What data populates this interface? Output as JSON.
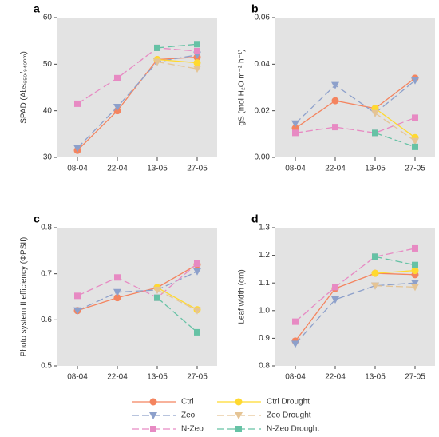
{
  "chart_data": [
    {
      "type": "line",
      "title": "a",
      "ylabel": "SPAD (Abs₆₅₀/₉₄₀ₙₘ)",
      "categories": [
        "08-04",
        "22-04",
        "13-05",
        "27-05"
      ],
      "ylim": [
        30,
        60
      ],
      "yticks": [
        30,
        40,
        50,
        60
      ],
      "grid": false,
      "series": [
        {
          "name": "Ctrl",
          "color": "#f4845f",
          "marker": "o",
          "linestyle": "solid",
          "values": [
            31.5,
            40,
            51,
            51.5
          ]
        },
        {
          "name": "Zeo",
          "color": "#8da0cb",
          "marker": "v",
          "linestyle": "dashed",
          "values": [
            32,
            40.8,
            50.5,
            52
          ]
        },
        {
          "name": "N-Zeo",
          "color": "#e78ac3",
          "marker": "s",
          "linestyle": "dashed",
          "values": [
            41.5,
            47,
            53.5,
            52.8
          ]
        },
        {
          "name": "Ctrl Drought",
          "color": "#ffd92f",
          "marker": "o",
          "linestyle": "solid",
          "values": [
            null,
            null,
            51,
            50.3
          ]
        },
        {
          "name": "Zeo Drought",
          "color": "#e5c494",
          "marker": "v",
          "linestyle": "dashed",
          "values": [
            null,
            null,
            50.5,
            49
          ]
        },
        {
          "name": "N-Zeo Drought",
          "color": "#66c2a5",
          "marker": "s",
          "linestyle": "dashed",
          "values": [
            null,
            null,
            53.5,
            54.3
          ]
        }
      ]
    },
    {
      "type": "line",
      "title": "b",
      "ylabel": "gS (mol H₂O m⁻² h⁻¹)",
      "categories": [
        "08-04",
        "22-04",
        "13-05",
        "27-05"
      ],
      "ylim": [
        0,
        0.06
      ],
      "yticks": [
        {
          "value": 0,
          "label": "0.00"
        },
        0.02,
        0.04,
        0.06
      ],
      "grid": false,
      "series": [
        {
          "name": "Ctrl",
          "color": "#f4845f",
          "marker": "o",
          "linestyle": "solid",
          "values": [
            0.0125,
            0.0243,
            0.021,
            0.034
          ]
        },
        {
          "name": "Zeo",
          "color": "#8da0cb",
          "marker": "v",
          "linestyle": "dashed",
          "values": [
            0.0145,
            0.031,
            0.019,
            0.033
          ]
        },
        {
          "name": "N-Zeo",
          "color": "#e78ac3",
          "marker": "s",
          "linestyle": "dashed",
          "values": [
            0.0105,
            0.013,
            0.0105,
            0.017
          ]
        },
        {
          "name": "Ctrl Drought",
          "color": "#ffd92f",
          "marker": "o",
          "linestyle": "solid",
          "values": [
            null,
            null,
            0.021,
            0.0085
          ]
        },
        {
          "name": "Zeo Drought",
          "color": "#e5c494",
          "marker": "v",
          "linestyle": "dashed",
          "values": [
            null,
            null,
            0.019,
            0.007
          ]
        },
        {
          "name": "N-Zeo Drought",
          "color": "#66c2a5",
          "marker": "s",
          "linestyle": "dashed",
          "values": [
            null,
            null,
            0.0105,
            0.0045
          ]
        }
      ]
    },
    {
      "type": "line",
      "title": "c",
      "ylabel": "Photo system II efficiency (ΦPSII)",
      "categories": [
        "08-04",
        "22-04",
        "13-05",
        "27-05"
      ],
      "ylim": [
        0.5,
        0.8
      ],
      "yticks": [
        0.5,
        0.6,
        0.7,
        0.8
      ],
      "grid": false,
      "series": [
        {
          "name": "Ctrl",
          "color": "#f4845f",
          "marker": "o",
          "linestyle": "solid",
          "values": [
            0.62,
            0.648,
            0.67,
            0.72
          ]
        },
        {
          "name": "Zeo",
          "color": "#8da0cb",
          "marker": "v",
          "linestyle": "dashed",
          "values": [
            0.62,
            0.66,
            0.665,
            0.705
          ]
        },
        {
          "name": "N-Zeo",
          "color": "#e78ac3",
          "marker": "s",
          "linestyle": "dashed",
          "values": [
            0.652,
            0.692,
            0.648,
            0.722
          ]
        },
        {
          "name": "Ctrl Drought",
          "color": "#ffd92f",
          "marker": "o",
          "linestyle": "solid",
          "values": [
            null,
            null,
            0.67,
            0.622
          ]
        },
        {
          "name": "Zeo Drought",
          "color": "#e5c494",
          "marker": "v",
          "linestyle": "dashed",
          "values": [
            null,
            null,
            0.665,
            0.62
          ]
        },
        {
          "name": "N-Zeo Drought",
          "color": "#66c2a5",
          "marker": "s",
          "linestyle": "dashed",
          "values": [
            null,
            null,
            0.648,
            0.573
          ]
        }
      ]
    },
    {
      "type": "line",
      "title": "d",
      "ylabel": "Leaf width (cm)",
      "categories": [
        "08-04",
        "22-04",
        "13-05",
        "27-05"
      ],
      "ylim": [
        0.8,
        1.3
      ],
      "yticks": [
        0.8,
        0.9,
        {
          "value": 1,
          "label": "1.0"
        },
        1.1,
        1.2,
        1.3
      ],
      "grid": false,
      "series": [
        {
          "name": "Ctrl",
          "color": "#f4845f",
          "marker": "o",
          "linestyle": "solid",
          "values": [
            0.89,
            1.08,
            1.135,
            1.13
          ]
        },
        {
          "name": "Zeo",
          "color": "#8da0cb",
          "marker": "v",
          "linestyle": "dashed",
          "values": [
            0.88,
            1.04,
            1.09,
            1.1
          ]
        },
        {
          "name": "N-Zeo",
          "color": "#e78ac3",
          "marker": "s",
          "linestyle": "dashed",
          "values": [
            0.96,
            1.085,
            1.195,
            1.225
          ]
        },
        {
          "name": "Ctrl Drought",
          "color": "#ffd92f",
          "marker": "o",
          "linestyle": "solid",
          "values": [
            null,
            null,
            1.135,
            1.145
          ]
        },
        {
          "name": "Zeo Drought",
          "color": "#e5c494",
          "marker": "v",
          "linestyle": "dashed",
          "values": [
            null,
            null,
            1.09,
            1.085
          ]
        },
        {
          "name": "N-Zeo Drought",
          "color": "#66c2a5",
          "marker": "s",
          "linestyle": "dashed",
          "values": [
            null,
            null,
            1.195,
            1.165
          ]
        }
      ]
    }
  ]
}
